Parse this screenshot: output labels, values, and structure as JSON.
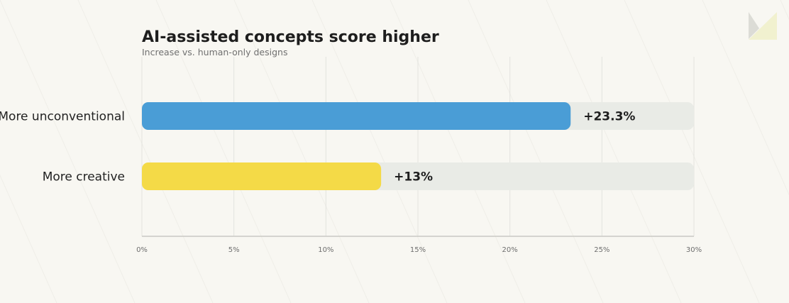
{
  "chart_data": {
    "type": "bar",
    "orientation": "horizontal",
    "title": "AI-assisted concepts score higher",
    "subtitle": "Increase vs. human-only designs",
    "categories": [
      "More unconventional",
      "More creative"
    ],
    "values": [
      23.3,
      13
    ],
    "value_labels": [
      "+23.3%",
      "+13%"
    ],
    "bar_colors": [
      "#4a9dd6",
      "#f4da47"
    ],
    "track_color": "#e9ebe6",
    "xlim": [
      0,
      30
    ],
    "x_ticks": [
      0,
      5,
      10,
      15,
      20,
      25,
      30
    ],
    "x_tick_labels": [
      "0%",
      "5%",
      "10%",
      "15%",
      "20%",
      "25%",
      "30%"
    ],
    "grid": true,
    "legend": "none"
  },
  "colors": {
    "background": "#f8f7f2",
    "grid": "#e3e3de",
    "axis": "#c9c9c4",
    "logo_gray": "#dcdcd6",
    "logo_yellow": "#f1f1cf"
  },
  "logo": {
    "icon": "brand-mark-icon"
  }
}
